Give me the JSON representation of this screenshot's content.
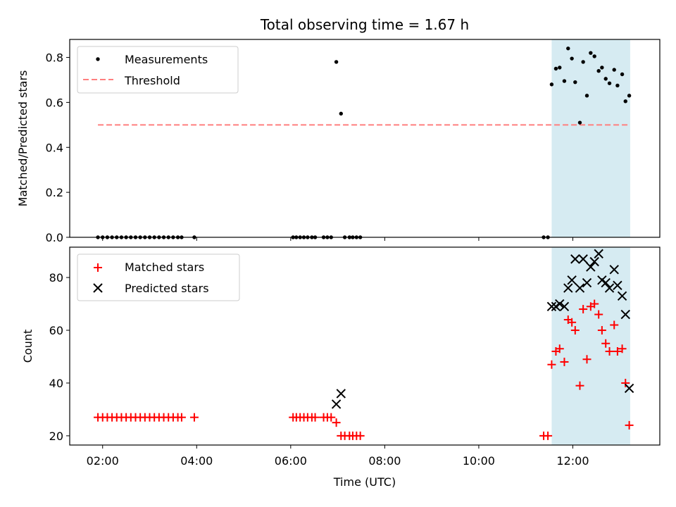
{
  "chart_data": [
    {
      "type": "scatter",
      "panel": "top",
      "title": "Total observing time = 1.67 h",
      "ylabel": "Matched/Predicted stars",
      "ylim": [
        0,
        0.88
      ],
      "xlim": [
        1.3,
        13.85
      ],
      "yticks": [
        0.0,
        0.2,
        0.4,
        0.6,
        0.8
      ],
      "ytick_labels": [
        "0.0",
        "0.2",
        "0.4",
        "0.6",
        "0.8"
      ],
      "highlight_span": [
        11.55,
        13.22
      ],
      "highlight_color": "#add8e6",
      "legend_position": "upper-left",
      "series": [
        {
          "name": "Measurements",
          "marker": "dot",
          "color": "#000000",
          "x": [
            1.9,
            2.0,
            2.1,
            2.2,
            2.3,
            2.4,
            2.5,
            2.6,
            2.7,
            2.8,
            2.9,
            3.0,
            3.1,
            3.2,
            3.3,
            3.4,
            3.5,
            3.6,
            3.68,
            3.95,
            6.05,
            6.12,
            6.2,
            6.28,
            6.36,
            6.45,
            6.52,
            6.7,
            6.78,
            6.86,
            6.97,
            7.07,
            7.15,
            7.25,
            7.32,
            7.4,
            7.48,
            11.38,
            11.47,
            11.55,
            11.64,
            11.72,
            11.82,
            11.9,
            11.98,
            12.05,
            12.15,
            12.22,
            12.3,
            12.38,
            12.46,
            12.55,
            12.62,
            12.7,
            12.78,
            12.88,
            12.95,
            13.05,
            13.12,
            13.2
          ],
          "y": [
            0,
            0,
            0,
            0,
            0,
            0,
            0,
            0,
            0,
            0,
            0,
            0,
            0,
            0,
            0,
            0,
            0,
            0,
            0,
            0,
            0,
            0,
            0,
            0,
            0,
            0,
            0,
            0,
            0,
            0,
            0.78,
            0.55,
            0,
            0,
            0,
            0,
            0,
            0,
            0,
            0.68,
            0.75,
            0.755,
            0.695,
            0.84,
            0.795,
            0.69,
            0.51,
            0.78,
            0.63,
            0.82,
            0.805,
            0.74,
            0.755,
            0.705,
            0.685,
            0.745,
            0.675,
            0.725,
            0.605,
            0.63
          ]
        },
        {
          "name": "Threshold",
          "style": "dashed-line",
          "color": "#ff7f7f",
          "x": [
            1.9,
            13.2
          ],
          "y": [
            0.5,
            0.5
          ]
        }
      ]
    },
    {
      "type": "scatter",
      "panel": "bottom",
      "xlabel": "Time (UTC)",
      "ylabel": "Count",
      "ylim": [
        16.5,
        91.5
      ],
      "xlim": [
        1.3,
        13.85
      ],
      "xticks": [
        2,
        4,
        6,
        8,
        10,
        12
      ],
      "xtick_labels": [
        "02:00",
        "04:00",
        "06:00",
        "08:00",
        "10:00",
        "12:00"
      ],
      "yticks": [
        20,
        40,
        60,
        80
      ],
      "ytick_labels": [
        "20",
        "40",
        "60",
        "80"
      ],
      "highlight_span": [
        11.55,
        13.22
      ],
      "highlight_color": "#add8e6",
      "legend_position": "upper-left",
      "series": [
        {
          "name": "Matched stars",
          "marker": "plus",
          "color": "#ff0000",
          "x": [
            1.9,
            2.0,
            2.1,
            2.2,
            2.3,
            2.4,
            2.5,
            2.6,
            2.7,
            2.8,
            2.9,
            3.0,
            3.1,
            3.2,
            3.3,
            3.4,
            3.5,
            3.6,
            3.68,
            3.95,
            6.05,
            6.12,
            6.2,
            6.28,
            6.36,
            6.45,
            6.52,
            6.7,
            6.78,
            6.86,
            6.97,
            7.07,
            7.15,
            7.25,
            7.32,
            7.4,
            7.48,
            11.38,
            11.47,
            11.55,
            11.64,
            11.72,
            11.82,
            11.9,
            11.98,
            12.05,
            12.15,
            12.22,
            12.3,
            12.38,
            12.46,
            12.55,
            12.62,
            12.7,
            12.78,
            12.88,
            12.95,
            13.05,
            13.12,
            13.2
          ],
          "y": [
            27,
            27,
            27,
            27,
            27,
            27,
            27,
            27,
            27,
            27,
            27,
            27,
            27,
            27,
            27,
            27,
            27,
            27,
            27,
            27,
            27,
            27,
            27,
            27,
            27,
            27,
            27,
            27,
            27,
            27,
            25,
            20,
            20,
            20,
            20,
            20,
            20,
            20,
            20,
            47,
            52,
            53,
            48,
            64,
            63,
            60,
            39,
            68,
            49,
            69,
            70,
            66,
            60,
            55,
            52,
            62,
            52,
            53,
            40,
            24
          ]
        },
        {
          "name": "Predicted stars",
          "marker": "x",
          "color": "#000000",
          "x": [
            6.97,
            7.07,
            11.55,
            11.64,
            11.72,
            11.82,
            11.9,
            11.98,
            12.05,
            12.15,
            12.22,
            12.3,
            12.38,
            12.46,
            12.55,
            12.62,
            12.7,
            12.78,
            12.88,
            12.95,
            13.05,
            13.12,
            13.2
          ],
          "y": [
            32,
            36,
            69,
            69,
            70,
            69,
            76,
            79,
            87,
            76,
            87,
            78,
            84,
            86,
            89,
            79,
            78,
            76,
            83,
            77,
            73,
            66,
            38
          ]
        }
      ]
    }
  ]
}
